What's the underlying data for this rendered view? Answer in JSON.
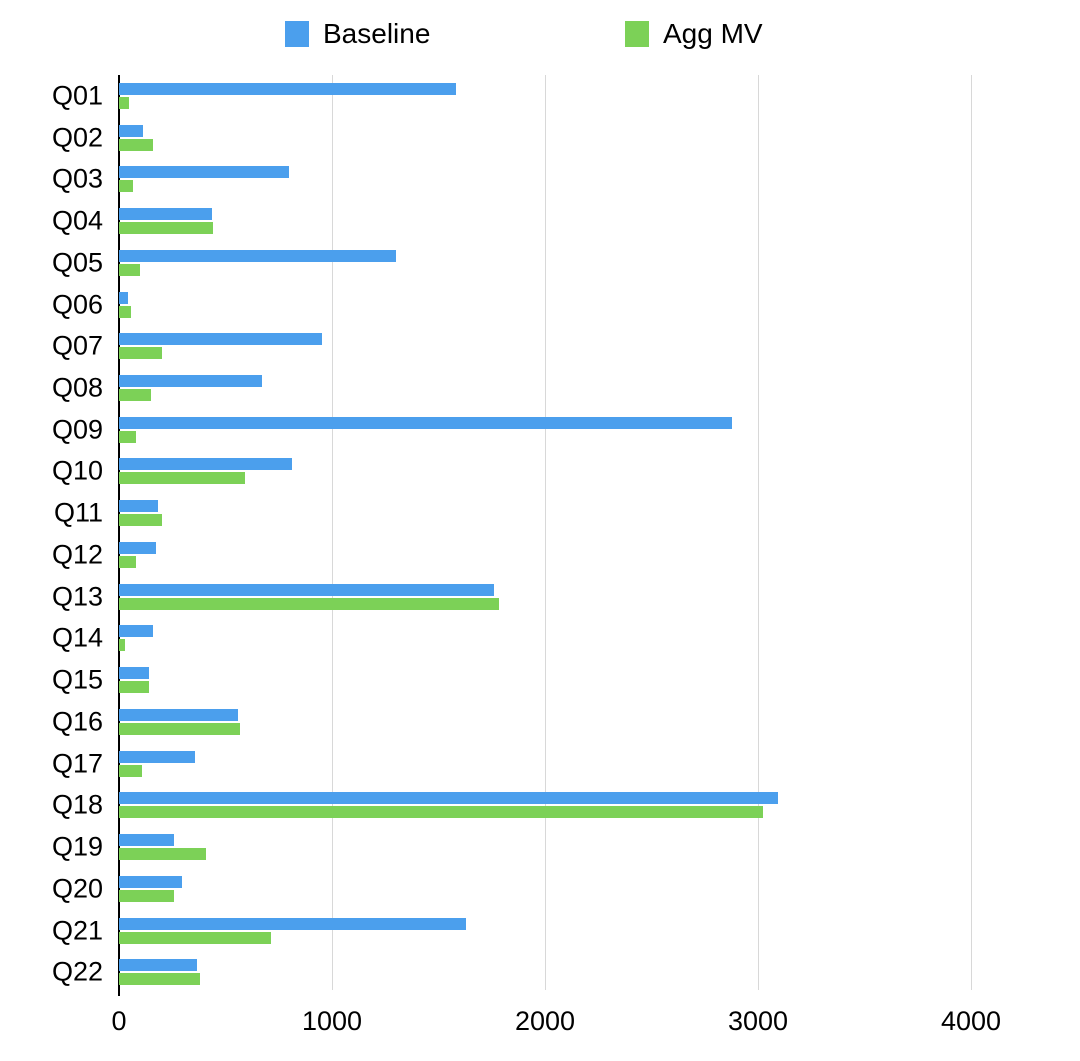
{
  "legend": [
    {
      "label": "Baseline",
      "color": "#4B9FED"
    },
    {
      "label": "Agg MV",
      "color": "#7CD157"
    }
  ],
  "colors": {
    "baseline": "#4B9FED",
    "agg_mv": "#7CD157",
    "gridline": "#d8d8d8",
    "axis": "#000000"
  },
  "chart_data": {
    "type": "bar",
    "orientation": "horizontal",
    "title": "",
    "xlabel": "",
    "ylabel": "",
    "xlim": [
      0,
      4000
    ],
    "x_ticks": [
      0,
      1000,
      2000,
      3000,
      4000
    ],
    "x_tick_labels": [
      "0",
      "1000",
      "2000",
      "3000",
      "4000"
    ],
    "grid": "vertical",
    "legend_position": "top",
    "categories": [
      "Q01",
      "Q02",
      "Q03",
      "Q04",
      "Q05",
      "Q06",
      "Q07",
      "Q08",
      "Q09",
      "Q10",
      "Q11",
      "Q12",
      "Q13",
      "Q14",
      "Q15",
      "Q16",
      "Q17",
      "Q18",
      "Q19",
      "Q20",
      "Q21",
      "Q22"
    ],
    "series": [
      {
        "name": "Baseline",
        "color": "#4B9FED",
        "values": [
          1580,
          115,
          800,
          435,
          1300,
          40,
          955,
          670,
          2880,
          810,
          185,
          175,
          1760,
          160,
          140,
          560,
          355,
          3095,
          260,
          295,
          1630,
          365
        ]
      },
      {
        "name": "Agg MV",
        "color": "#7CD157",
        "values": [
          45,
          160,
          65,
          440,
          100,
          55,
          200,
          150,
          80,
          590,
          200,
          80,
          1785,
          30,
          140,
          570,
          110,
          3025,
          410,
          260,
          715,
          380
        ]
      }
    ]
  }
}
